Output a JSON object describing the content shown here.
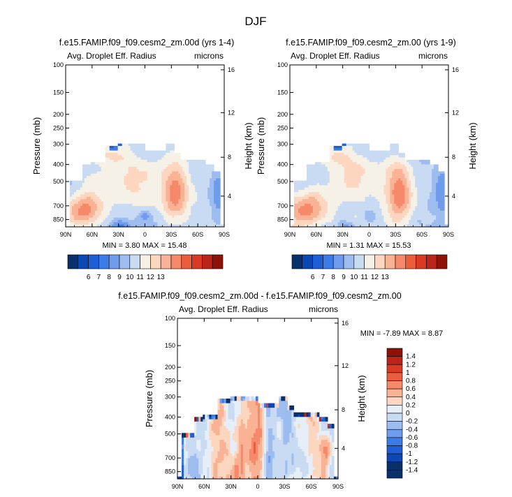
{
  "page_title": "DJF",
  "palette": {
    "abs": [
      "#08306b",
      "#0b47b5",
      "#1f5fd6",
      "#3c7ce8",
      "#6f9cec",
      "#9dbcef",
      "#c9dbf3",
      "#f6f1e7",
      "#fcd6bf",
      "#f9b294",
      "#f5896a",
      "#ec5d3d",
      "#d93a24",
      "#bb2519",
      "#8e1208"
    ],
    "diff": [
      "#08306b",
      "#0b47b5",
      "#1f5fd6",
      "#3c7ce8",
      "#6f9cec",
      "#9dbcef",
      "#c9dbf3",
      "#e6eef7",
      "#fcd6bf",
      "#f9b294",
      "#f5896a",
      "#ec5d3d",
      "#d93a24",
      "#bb2519",
      "#8e1208"
    ]
  },
  "chart_data": [
    {
      "type": "heatmap",
      "title": "f.e15.FAMIP.f09_f09.cesm2_zm.00d (yrs 1-4)",
      "left_label": "Avg. Droplet Eff. Radius",
      "right_label": "microns",
      "ylabel": "Pressure (mb)",
      "ylabel_right": "Height (km)",
      "xticks": [
        "90N",
        "60N",
        "30N",
        "0",
        "30S",
        "60S",
        "90S"
      ],
      "yticks": [
        "100",
        "150",
        "200",
        "250",
        "300",
        "400",
        "500",
        "700",
        "850"
      ],
      "yticks_right": [
        "16",
        "12",
        "8",
        "4"
      ],
      "min_max_label": "MIN =   3.80  MAX =  15.48",
      "stats": {
        "min": 3.8,
        "max": 15.48
      },
      "colorbar_labels": [
        "6",
        "7",
        "8",
        "9",
        "10",
        "11",
        "12",
        "13"
      ]
    },
    {
      "type": "heatmap",
      "title": "f.e15.FAMIP.f09_f09.cesm2_zm.00 (yrs 1-9)",
      "left_label": "Avg. Droplet Eff. Radius",
      "right_label": "microns",
      "ylabel": "Pressure (mb)",
      "ylabel_right": "Height (km)",
      "xticks": [
        "90N",
        "60N",
        "30N",
        "0",
        "30S",
        "60S",
        "90S"
      ],
      "yticks": [
        "100",
        "150",
        "200",
        "250",
        "300",
        "400",
        "500",
        "700",
        "850"
      ],
      "yticks_right": [
        "16",
        "12",
        "8",
        "4"
      ],
      "min_max_label": "MIN =   1.31  MAX =  15.53",
      "stats": {
        "min": 1.31,
        "max": 15.53
      },
      "colorbar_labels": [
        "6",
        "7",
        "8",
        "9",
        "10",
        "11",
        "12",
        "13"
      ]
    },
    {
      "type": "heatmap",
      "title": "f.e15.FAMIP.f09_f09.cesm2_zm.00d - f.e15.FAMIP.f09_f09.cesm2_zm.00",
      "left_label": "Avg. Droplet Eff. Radius",
      "right_label": "microns",
      "ylabel": "Pressure (mb)",
      "ylabel_right": "Height (km)",
      "xticks": [
        "90N",
        "60N",
        "30N",
        "0",
        "30S",
        "60S",
        "90S"
      ],
      "yticks": [
        "100",
        "150",
        "200",
        "250",
        "300",
        "400",
        "500",
        "700",
        "850"
      ],
      "yticks_right": [
        "16",
        "12",
        "8",
        "4"
      ],
      "min_max_label": "MIN =  -7.89  MAX =   8.87",
      "stats": {
        "min": -7.89,
        "max": 8.87
      },
      "colorbar_labels": [
        "1.4",
        "1.2",
        "1",
        "0.8",
        "0.6",
        "0.4",
        "0.2",
        "0",
        "-0.2",
        "-0.4",
        "-0.6",
        "-0.8",
        "-1",
        "-1.2",
        "-1.4"
      ]
    }
  ]
}
